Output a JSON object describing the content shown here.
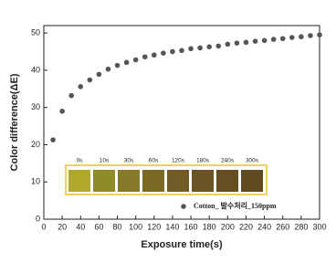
{
  "chart_data": {
    "type": "scatter",
    "x_label": "Exposure time(s)",
    "y_label": "Color difference(ΔE)",
    "x": [
      10,
      20,
      30,
      40,
      50,
      60,
      70,
      80,
      90,
      100,
      110,
      120,
      130,
      140,
      150,
      160,
      170,
      180,
      190,
      200,
      210,
      220,
      230,
      240,
      250,
      260,
      270,
      280,
      290,
      300
    ],
    "series": [
      {
        "name": "Cotton_ 발수처리_150ppm",
        "color": "#555555",
        "values": [
          21.3,
          29.0,
          33.2,
          35.6,
          37.4,
          38.9,
          40.3,
          41.3,
          42.1,
          42.8,
          43.6,
          44.1,
          44.6,
          45.0,
          45.3,
          45.8,
          46.0,
          46.3,
          46.5,
          47.0,
          47.3,
          47.5,
          47.8,
          48.0,
          48.3,
          48.5,
          48.8,
          49.0,
          49.3,
          49.5
        ]
      }
    ],
    "xlim": [
      0,
      300
    ],
    "xticks": [
      0,
      20,
      40,
      60,
      80,
      100,
      120,
      140,
      160,
      180,
      200,
      220,
      240,
      260,
      280,
      300
    ],
    "ylim": [
      0,
      52
    ],
    "yticks": [
      0,
      10,
      20,
      30,
      40,
      50
    ],
    "inset_labels": [
      "0s",
      "10s",
      "30s",
      "60s",
      "120s",
      "180s",
      "240s",
      "300s"
    ]
  }
}
